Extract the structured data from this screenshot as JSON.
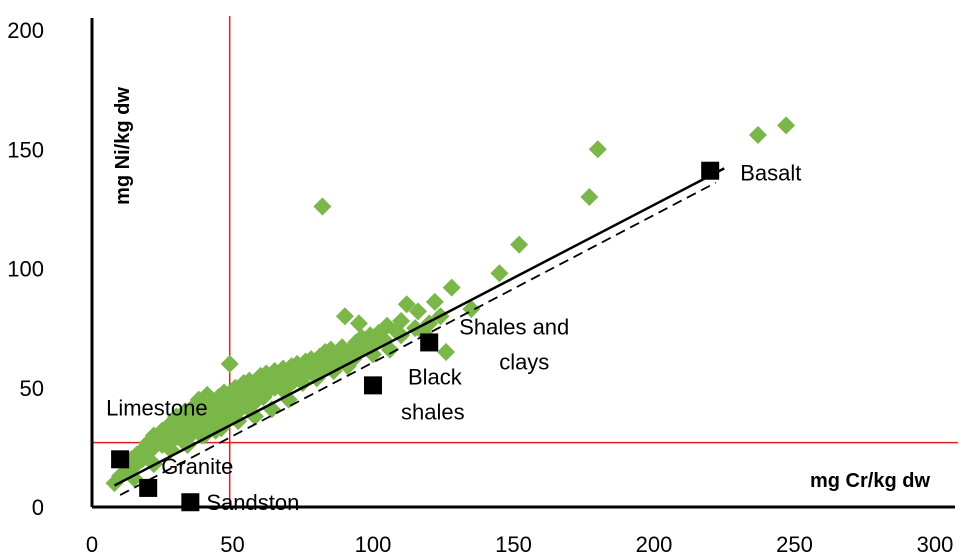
{
  "chart_data": {
    "type": "scatter",
    "title": "",
    "xlabel": "mg Cr/kg dw",
    "ylabel": "mg Ni/kg dw",
    "xlim": [
      0,
      300
    ],
    "ylim": [
      0,
      200
    ],
    "x_ticks": [
      0,
      50,
      100,
      150,
      200,
      250,
      300
    ],
    "y_ticks": [
      0,
      50,
      100,
      150,
      200
    ],
    "grid": false,
    "colors": {
      "samples": "#7ab648",
      "rocks": "#000000",
      "threshold_lines": "#e02020",
      "fit_line": "#000000"
    },
    "threshold_lines": {
      "x": 49,
      "y": 27
    },
    "fit_lines": [
      {
        "style": "solid",
        "from": [
          8,
          9
        ],
        "to": [
          225,
          142
        ]
      },
      {
        "style": "dashed",
        "from": [
          10,
          5
        ],
        "to": [
          222,
          136
        ]
      }
    ],
    "reference_rocks": [
      {
        "label": "Basalt",
        "x": 220,
        "y": 141
      },
      {
        "label": "Shales and clays",
        "x": 120,
        "y": 69
      },
      {
        "label": "Black shales",
        "x": 100,
        "y": 51
      },
      {
        "label": "Limestone",
        "x": 10,
        "y": 20
      },
      {
        "label": "Granite",
        "x": 20,
        "y": 8
      },
      {
        "label": "Sandston",
        "x": 35,
        "y": 2
      }
    ],
    "samples": [
      [
        8,
        10
      ],
      [
        10,
        13
      ],
      [
        12,
        15
      ],
      [
        12,
        18
      ],
      [
        14,
        20
      ],
      [
        15,
        17
      ],
      [
        16,
        22
      ],
      [
        18,
        24
      ],
      [
        18,
        20
      ],
      [
        20,
        23
      ],
      [
        20,
        27
      ],
      [
        22,
        25
      ],
      [
        22,
        30
      ],
      [
        24,
        28
      ],
      [
        25,
        26
      ],
      [
        25,
        32
      ],
      [
        26,
        29
      ],
      [
        28,
        31
      ],
      [
        28,
        35
      ],
      [
        28,
        27
      ],
      [
        30,
        30
      ],
      [
        30,
        34
      ],
      [
        30,
        38
      ],
      [
        32,
        28
      ],
      [
        32,
        33
      ],
      [
        32,
        36
      ],
      [
        33,
        40
      ],
      [
        34,
        32
      ],
      [
        35,
        35
      ],
      [
        35,
        38
      ],
      [
        35,
        30
      ],
      [
        36,
        42
      ],
      [
        37,
        36
      ],
      [
        38,
        33
      ],
      [
        38,
        39
      ],
      [
        38,
        45
      ],
      [
        39,
        30
      ],
      [
        40,
        38
      ],
      [
        40,
        42
      ],
      [
        40,
        35
      ],
      [
        41,
        47
      ],
      [
        42,
        40
      ],
      [
        42,
        36
      ],
      [
        43,
        44
      ],
      [
        44,
        38
      ],
      [
        44,
        32
      ],
      [
        45,
        41
      ],
      [
        45,
        46
      ],
      [
        45,
        36
      ],
      [
        46,
        44
      ],
      [
        47,
        40
      ],
      [
        47,
        48
      ],
      [
        48,
        42
      ],
      [
        48,
        37
      ],
      [
        49,
        45
      ],
      [
        49,
        60
      ],
      [
        50,
        43
      ],
      [
        50,
        47
      ],
      [
        50,
        39
      ],
      [
        51,
        50
      ],
      [
        52,
        44
      ],
      [
        52,
        40
      ],
      [
        53,
        48
      ],
      [
        54,
        46
      ],
      [
        54,
        52
      ],
      [
        55,
        42
      ],
      [
        55,
        49
      ],
      [
        56,
        45
      ],
      [
        56,
        53
      ],
      [
        57,
        47
      ],
      [
        58,
        50
      ],
      [
        58,
        44
      ],
      [
        59,
        52
      ],
      [
        60,
        48
      ],
      [
        60,
        55
      ],
      [
        61,
        46
      ],
      [
        62,
        51
      ],
      [
        62,
        56
      ],
      [
        63,
        49
      ],
      [
        64,
        53
      ],
      [
        65,
        50
      ],
      [
        65,
        57
      ],
      [
        66,
        52
      ],
      [
        67,
        55
      ],
      [
        68,
        49
      ],
      [
        68,
        58
      ],
      [
        69,
        54
      ],
      [
        70,
        56
      ],
      [
        70,
        51
      ],
      [
        71,
        59
      ],
      [
        72,
        53
      ],
      [
        72,
        57
      ],
      [
        73,
        60
      ],
      [
        74,
        55
      ],
      [
        75,
        58
      ],
      [
        75,
        52
      ],
      [
        76,
        61
      ],
      [
        77,
        57
      ],
      [
        78,
        62
      ],
      [
        79,
        56
      ],
      [
        80,
        60
      ],
      [
        80,
        54
      ],
      [
        81,
        63
      ],
      [
        82,
        58
      ],
      [
        83,
        65
      ],
      [
        84,
        60
      ],
      [
        85,
        62
      ],
      [
        85,
        66
      ],
      [
        86,
        57
      ],
      [
        87,
        64
      ],
      [
        88,
        61
      ],
      [
        89,
        67
      ],
      [
        90,
        63
      ],
      [
        90,
        80
      ],
      [
        91,
        59
      ],
      [
        92,
        66
      ],
      [
        93,
        62
      ],
      [
        94,
        69
      ],
      [
        95,
        65
      ],
      [
        95,
        77
      ],
      [
        96,
        71
      ],
      [
        98,
        67
      ],
      [
        99,
        72
      ],
      [
        100,
        68
      ],
      [
        100,
        64
      ],
      [
        102,
        73
      ],
      [
        104,
        70
      ],
      [
        105,
        76
      ],
      [
        106,
        66
      ],
      [
        108,
        74
      ],
      [
        110,
        78
      ],
      [
        110,
        72
      ],
      [
        112,
        85
      ],
      [
        115,
        75
      ],
      [
        116,
        82
      ],
      [
        118,
        73
      ],
      [
        120,
        77
      ],
      [
        122,
        86
      ],
      [
        124,
        80
      ],
      [
        126,
        65
      ],
      [
        128,
        92
      ],
      [
        135,
        83
      ],
      [
        145,
        98
      ],
      [
        152,
        110
      ],
      [
        82,
        126
      ],
      [
        177,
        130
      ],
      [
        180,
        150
      ],
      [
        237,
        156
      ],
      [
        247,
        160
      ],
      [
        15,
        12
      ],
      [
        22,
        18
      ],
      [
        28,
        24
      ],
      [
        34,
        26
      ],
      [
        40,
        30
      ],
      [
        46,
        33
      ],
      [
        52,
        36
      ],
      [
        58,
        38
      ],
      [
        64,
        41
      ],
      [
        70,
        45
      ]
    ]
  }
}
